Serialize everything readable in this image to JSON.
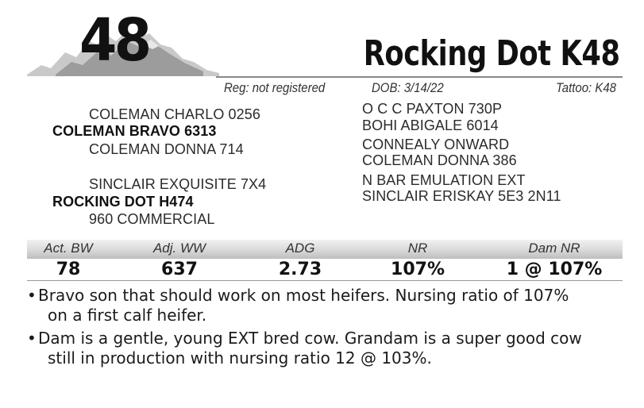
{
  "lot_number": "48",
  "animal_name": "Rocking Dot K48",
  "registration": "Reg: not registered",
  "dob": "DOB:  3/14/22",
  "tattoo": "Tattoo:  K48",
  "pedigree": {
    "sire": "COLEMAN BRAVO 6313",
    "sire_sire": "COLEMAN CHARLO 0256",
    "sire_dam": "COLEMAN DONNA  714",
    "dam": "ROCKING DOT H474",
    "dam_sire": "SINCLAIR EXQUISITE 7X4",
    "dam_dam": "960 COMMERCIAL",
    "sss": "O C C PAXTON 730P",
    "ssd": "BOHI ABIGALE 6014",
    "sds": "CONNEALY ONWARD",
    "sdd": "COLEMAN DONNA  386",
    "dss": "N BAR EMULATION EXT",
    "dsd": "SINCLAIR ERISKAY 5E3 2N11"
  },
  "stats": {
    "headers": [
      "Act. BW",
      "Adj. WW",
      "ADG",
      "NR",
      "Dam NR"
    ],
    "values": [
      "78",
      "637",
      "2.73",
      "107%",
      "1 @ 107%"
    ]
  },
  "notes": [
    {
      "bullet": "•",
      "line1": "Bravo son that should work on most heifers.  Nursing ratio of 107%",
      "line2": "on a first calf heifer."
    },
    {
      "bullet": "•",
      "line1": "Dam is a gentle, young EXT bred cow.  Grandam is a super good cow",
      "line2": "still in production with nursing ratio 12 @ 103%."
    }
  ],
  "colors": {
    "band_top": "#f2f2f2",
    "band_bottom": "#bdbdbd",
    "text": "#1b1b1b"
  }
}
